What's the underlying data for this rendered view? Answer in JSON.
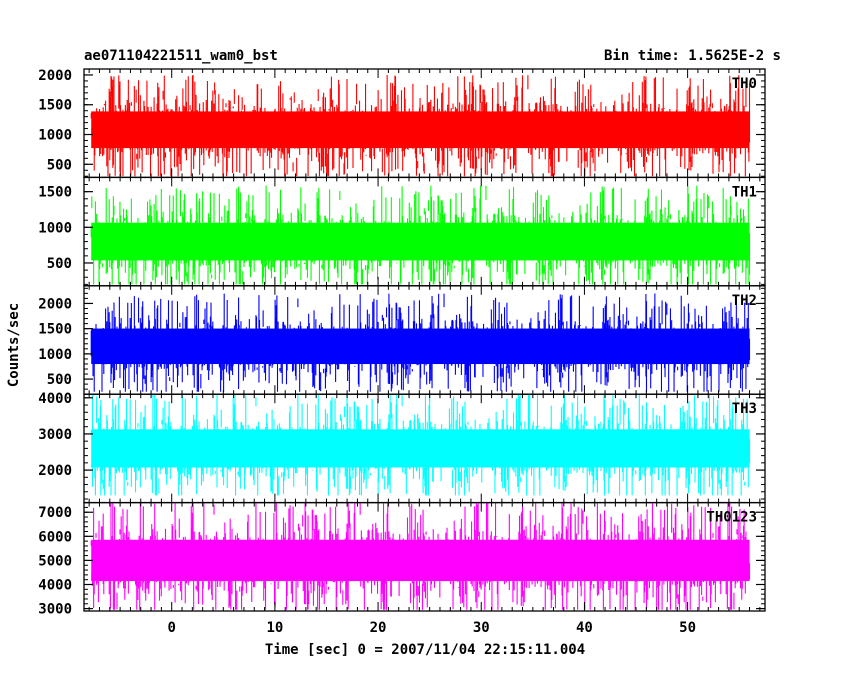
{
  "header": {
    "left_title": "ae071104221511_wam0_bst",
    "right_title": "Bin time: 1.5625E-2 s"
  },
  "chart_data": {
    "type": "line",
    "xlabel": "Time [sec] 0 = 2007/11/04 22:15:11.004",
    "ylabel": "Counts/sec",
    "xlim": [
      -8.5,
      57.5
    ],
    "x_ticks": [
      0,
      10,
      20,
      30,
      40,
      50
    ],
    "x_minor_step": 1,
    "data_x_range": [
      -7.8,
      56.0
    ],
    "bin_time": 0.015625,
    "grid": false,
    "panels": [
      {
        "name": "TH0",
        "color": "#ff0000",
        "ylim": [
          280,
          2100
        ],
        "y_ticks": [
          500,
          1000,
          1500,
          2000
        ],
        "y_minor_step": 100,
        "mean": 1080,
        "spread": 280,
        "min": 300,
        "max": 2100
      },
      {
        "name": "TH1",
        "color": "#00ff00",
        "ylim": [
          180,
          1700
        ],
        "y_ticks": [
          500,
          1000,
          1500
        ],
        "y_minor_step": 100,
        "mean": 800,
        "spread": 240,
        "min": 200,
        "max": 1700
      },
      {
        "name": "TH2",
        "color": "#0000ff",
        "ylim": [
          200,
          2350
        ],
        "y_ticks": [
          500,
          1000,
          1500,
          2000
        ],
        "y_minor_step": 100,
        "mean": 1150,
        "spread": 320,
        "min": 250,
        "max": 2350
      },
      {
        "name": "TH3",
        "color": "#00ffff",
        "ylim": [
          1100,
          4100
        ],
        "y_ticks": [
          2000,
          3000,
          4000
        ],
        "y_minor_step": 200,
        "mean": 2600,
        "spread": 480,
        "min": 1300,
        "max": 4100
      },
      {
        "name": "TH0123",
        "color": "#ff00ff",
        "ylim": [
          2900,
          7400
        ],
        "y_ticks": [
          3000,
          4000,
          5000,
          6000,
          7000
        ],
        "y_minor_step": 200,
        "mean": 5000,
        "spread": 780,
        "min": 2950,
        "max": 7400
      }
    ]
  }
}
